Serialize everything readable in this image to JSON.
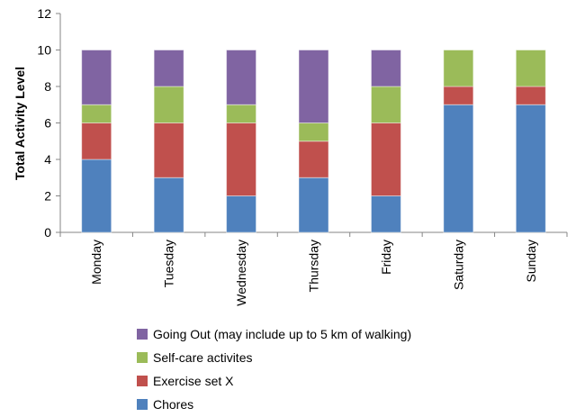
{
  "chart_data": {
    "type": "bar",
    "stacked": true,
    "categories": [
      "Monday",
      "Tuesday",
      "Wednesday",
      "Thursday",
      "Friday",
      "Saturday",
      "Sunday"
    ],
    "series": [
      {
        "name": "Chores",
        "color": "#4F81BD",
        "values": [
          4,
          3,
          2,
          3,
          2,
          7,
          7
        ]
      },
      {
        "name": "Exercise set X",
        "color": "#C0504D",
        "values": [
          2,
          3,
          4,
          2,
          4,
          1,
          1
        ]
      },
      {
        "name": "Self-care activites",
        "color": "#9BBB59",
        "values": [
          1,
          2,
          1,
          1,
          2,
          2,
          2
        ]
      },
      {
        "name": "Going Out (may include up to 5 km of walking)",
        "color": "#8064A2",
        "values": [
          3,
          2,
          3,
          4,
          2,
          0,
          0
        ]
      }
    ],
    "title": "",
    "xlabel": "",
    "ylabel": "Total Activity Level",
    "ylim": [
      0,
      12
    ],
    "yticks": [
      "0",
      "2",
      "4",
      "6",
      "8",
      "10",
      "12"
    ],
    "grid": false,
    "legend_position": "bottom"
  }
}
